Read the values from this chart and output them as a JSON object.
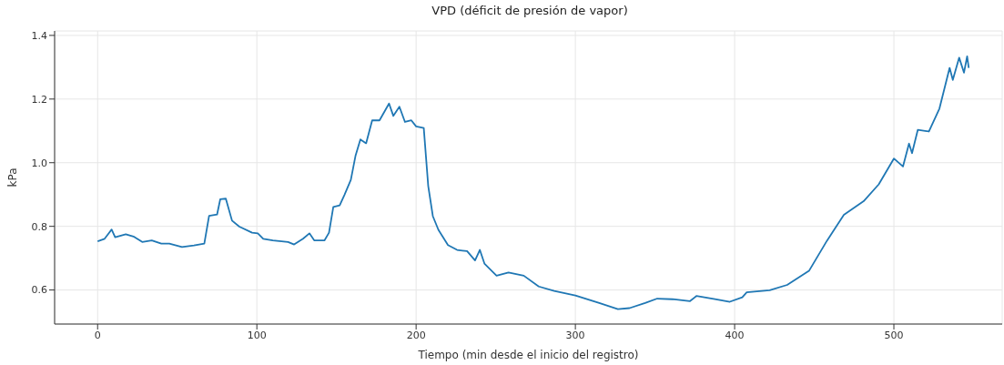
{
  "chart_data": {
    "type": "line",
    "title": "VPD (déficit de presión de vapor)",
    "xlabel": "Tiempo (min desde el inicio del registro)",
    "ylabel": "kPa",
    "xlim": [
      -27,
      568
    ],
    "xticks": [
      0,
      100,
      200,
      300,
      400,
      500
    ],
    "ylim": [
      0.493,
      1.414
    ],
    "yticks": [
      0.6,
      0.8,
      {
        "value": 1,
        "label": "1.0"
      },
      1.2,
      1.4
    ],
    "grid": true,
    "series": [
      {
        "color": "#1f77b4",
        "x": [
          0,
          4.4,
          8.8,
          11,
          17.7,
          22.5,
          28,
          34,
          40,
          45,
          53,
          60.5,
          67,
          70,
          75,
          77,
          80.5,
          84.4,
          89,
          97,
          100.6,
          104,
          110,
          119.6,
          123.4,
          129,
          133,
          136,
          142.5,
          145.3,
          148,
          152,
          155,
          159,
          162,
          165,
          168.6,
          172.4,
          177,
          183,
          185.7,
          189.5,
          193,
          197,
          200,
          204.8,
          207.6,
          210.5,
          214,
          220,
          225.7,
          232,
          237,
          240,
          242.9,
          250.5,
          258,
          267.6,
          277,
          286.7,
          300,
          315,
          326.7,
          334,
          343.8,
          351.4,
          361,
          372,
          376,
          387.6,
          397,
          404.8,
          407.6,
          422,
          433,
          446.7,
          458,
          468.6,
          481,
          490.5,
          500,
          505.7,
          509.5,
          511.4,
          515,
          522,
          528.6,
          535,
          537,
          541,
          544,
          546,
          547
        ],
        "values": [
          0.753,
          0.761,
          0.79,
          0.766,
          0.775,
          0.768,
          0.751,
          0.756,
          0.746,
          0.746,
          0.735,
          0.74,
          0.746,
          0.833,
          0.837,
          0.885,
          0.887,
          0.818,
          0.799,
          0.78,
          0.778,
          0.761,
          0.756,
          0.751,
          0.743,
          0.761,
          0.778,
          0.756,
          0.756,
          0.78,
          0.861,
          0.866,
          0.899,
          0.946,
          1.023,
          1.073,
          1.061,
          1.133,
          1.133,
          1.186,
          1.147,
          1.176,
          1.128,
          1.133,
          1.114,
          1.109,
          0.927,
          0.832,
          0.789,
          0.741,
          0.726,
          0.722,
          0.693,
          0.726,
          0.683,
          0.645,
          0.655,
          0.645,
          0.611,
          0.597,
          0.583,
          0.559,
          0.54,
          0.543,
          0.559,
          0.573,
          0.571,
          0.565,
          0.581,
          0.571,
          0.563,
          0.577,
          0.593,
          0.599,
          0.616,
          0.66,
          0.755,
          0.836,
          0.879,
          0.932,
          1.013,
          0.988,
          1.06,
          1.03,
          1.103,
          1.098,
          1.17,
          1.298,
          1.26,
          1.33,
          1.283,
          1.334,
          1.298
        ]
      }
    ]
  }
}
